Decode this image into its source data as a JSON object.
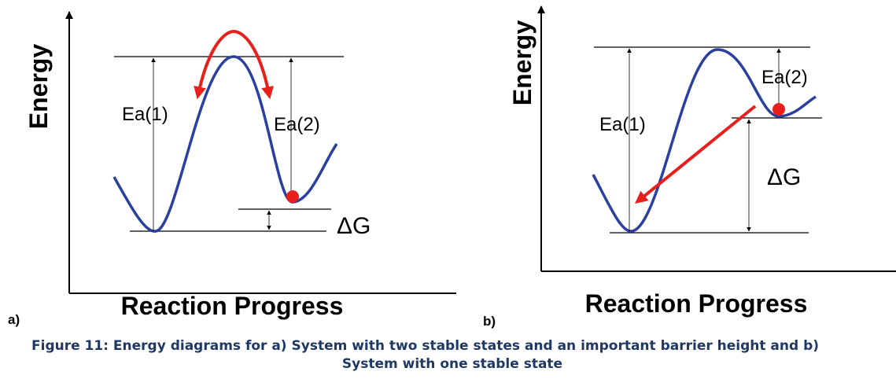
{
  "panels": [
    {
      "tag": "a)",
      "y_axis_label": "Energy",
      "x_axis_label": "Reaction Progress",
      "labels": {
        "ea1": "Ea(1)",
        "ea2": "Ea(2)",
        "dg": "ΔG"
      }
    },
    {
      "tag": "b)",
      "y_axis_label": "Energy",
      "x_axis_label": "Reaction Progress",
      "labels": {
        "ea1": "Ea(1)",
        "ea2": "Ea(2)",
        "dg": "ΔG"
      }
    }
  ],
  "caption": {
    "line1": "Figure 11: Energy diagrams for a) System with two stable states and an important barrier height and b)",
    "line2": "System with one stable state"
  }
}
